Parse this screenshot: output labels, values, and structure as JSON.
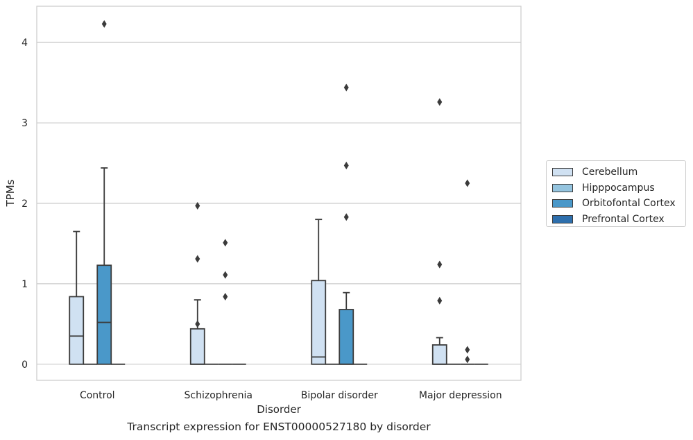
{
  "chart_data": {
    "type": "box",
    "title": "",
    "xlabel": "Disorder",
    "ylabel": "TPMs",
    "caption": "Transcript expression for ENST00000527180 by disorder",
    "categories": [
      "Control",
      "Schizophrenia",
      "Bipolar disorder",
      "Major depression"
    ],
    "ylim": [
      -0.2,
      4.45
    ],
    "yticks": [
      0,
      1,
      2,
      3,
      4
    ],
    "grid": "horizontal",
    "legend_position": "right",
    "series": [
      {
        "name": "Cerebellum",
        "color": "#d0e1f2",
        "boxes": [
          {
            "q1": 0,
            "median": 0.35,
            "q3": 0.84,
            "whisker_low": 0,
            "whisker_high": 1.65,
            "outliers": []
          },
          {
            "q1": 0,
            "median": 0,
            "q3": 0.44,
            "whisker_low": 0,
            "whisker_high": 0.8,
            "outliers": [
              1.97,
              1.31,
              0.5
            ]
          },
          {
            "q1": 0,
            "median": 0.09,
            "q3": 1.04,
            "whisker_low": 0,
            "whisker_high": 1.8,
            "outliers": []
          },
          {
            "q1": 0,
            "median": 0,
            "q3": 0.24,
            "whisker_low": 0,
            "whisker_high": 0.33,
            "outliers": [
              3.26,
              1.24,
              0.79
            ]
          }
        ]
      },
      {
        "name": "Hipppocampus",
        "color": "#94c4df",
        "boxes": [
          {
            "q1": 0,
            "median": 0,
            "q3": 0,
            "whisker_low": 0,
            "whisker_high": 0,
            "outliers": []
          },
          {
            "q1": 0,
            "median": 0,
            "q3": 0,
            "whisker_low": 0,
            "whisker_high": 0,
            "outliers": []
          },
          {
            "q1": 0,
            "median": 0,
            "q3": 0,
            "whisker_low": 0,
            "whisker_high": 0,
            "outliers": []
          },
          {
            "q1": 0,
            "median": 0,
            "q3": 0,
            "whisker_low": 0,
            "whisker_high": 0,
            "outliers": []
          }
        ]
      },
      {
        "name": "Orbitofontal Cortex",
        "color": "#4a98c9",
        "boxes": [
          {
            "q1": 0,
            "median": 0.52,
            "q3": 1.23,
            "whisker_low": 0,
            "whisker_high": 2.44,
            "outliers": [
              4.23
            ]
          },
          {
            "q1": 0,
            "median": 0,
            "q3": 0,
            "whisker_low": 0,
            "whisker_high": 0,
            "outliers": [
              1.51,
              1.11,
              0.84
            ]
          },
          {
            "q1": 0,
            "median": 0,
            "q3": 0.68,
            "whisker_low": 0,
            "whisker_high": 0.89,
            "outliers": [
              3.44,
              2.47,
              1.83
            ]
          },
          {
            "q1": 0,
            "median": 0,
            "q3": 0,
            "whisker_low": 0,
            "whisker_high": 0,
            "outliers": [
              2.25,
              0.18,
              0.06
            ]
          }
        ]
      },
      {
        "name": "Prefrontal Cortex",
        "color": "#2e6fad",
        "boxes": [
          {
            "q1": 0,
            "median": 0,
            "q3": 0,
            "whisker_low": 0,
            "whisker_high": 0,
            "outliers": []
          },
          {
            "q1": 0,
            "median": 0,
            "q3": 0,
            "whisker_low": 0,
            "whisker_high": 0,
            "outliers": []
          },
          {
            "q1": 0,
            "median": 0,
            "q3": 0,
            "whisker_low": 0,
            "whisker_high": 0,
            "outliers": []
          },
          {
            "q1": 0,
            "median": 0,
            "q3": 0,
            "whisker_low": 0,
            "whisker_high": 0,
            "outliers": []
          }
        ]
      }
    ]
  }
}
